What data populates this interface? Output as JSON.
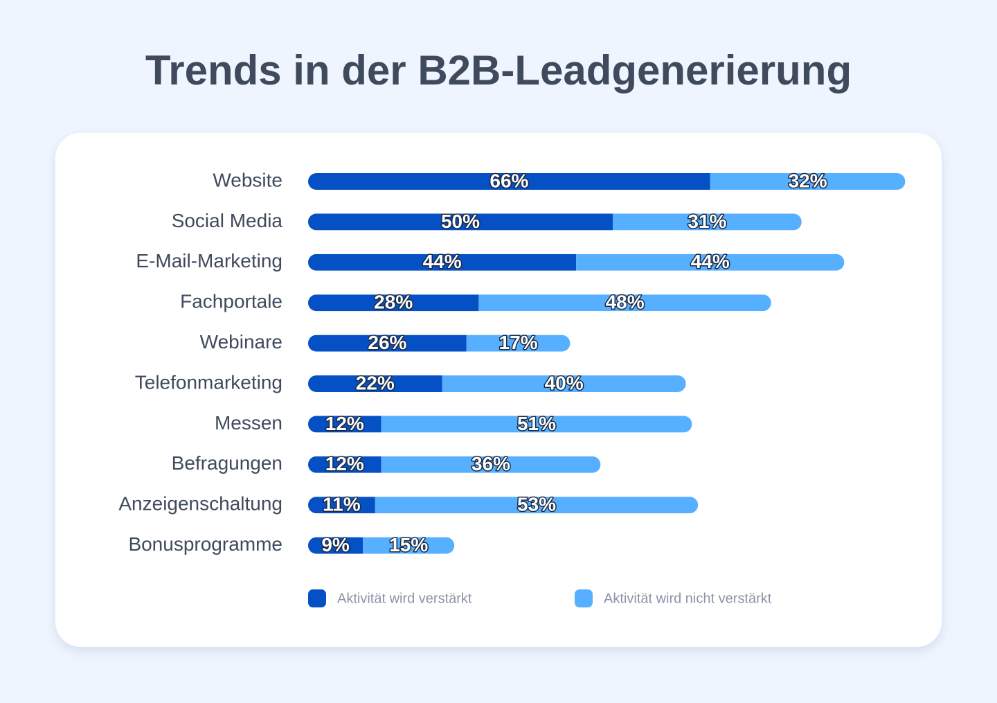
{
  "chart_data": {
    "type": "stacked-bar-horizontal",
    "title": "Trends in der B2B-Leadgenerierung",
    "categories": [
      "Website",
      "Social Media",
      "E-Mail-Marketing",
      "Fachportale",
      "Webinare",
      "Telefonmarketing",
      "Messen",
      "Befragungen",
      "Anzeigenschaltung",
      "Bonusprogramme"
    ],
    "series": [
      {
        "name": "Aktivität wird verstärkt",
        "color": "#0550c4",
        "values": [
          66,
          50,
          44,
          28,
          26,
          22,
          12,
          12,
          11,
          9
        ],
        "value_labels": [
          "66%",
          "50%",
          "44%",
          "28%",
          "26%",
          "22%",
          "12%",
          "12%",
          "11%",
          "9%"
        ]
      },
      {
        "name": "Aktivität wird nicht verstärkt",
        "color": "#56b0ff",
        "values": [
          32,
          31,
          44,
          48,
          17,
          40,
          51,
          36,
          53,
          15
        ],
        "value_labels": [
          "32%",
          "31%",
          "44%",
          "48%",
          "17%",
          "40%",
          "51%",
          "36%",
          "53%",
          "15%"
        ]
      }
    ]
  }
}
